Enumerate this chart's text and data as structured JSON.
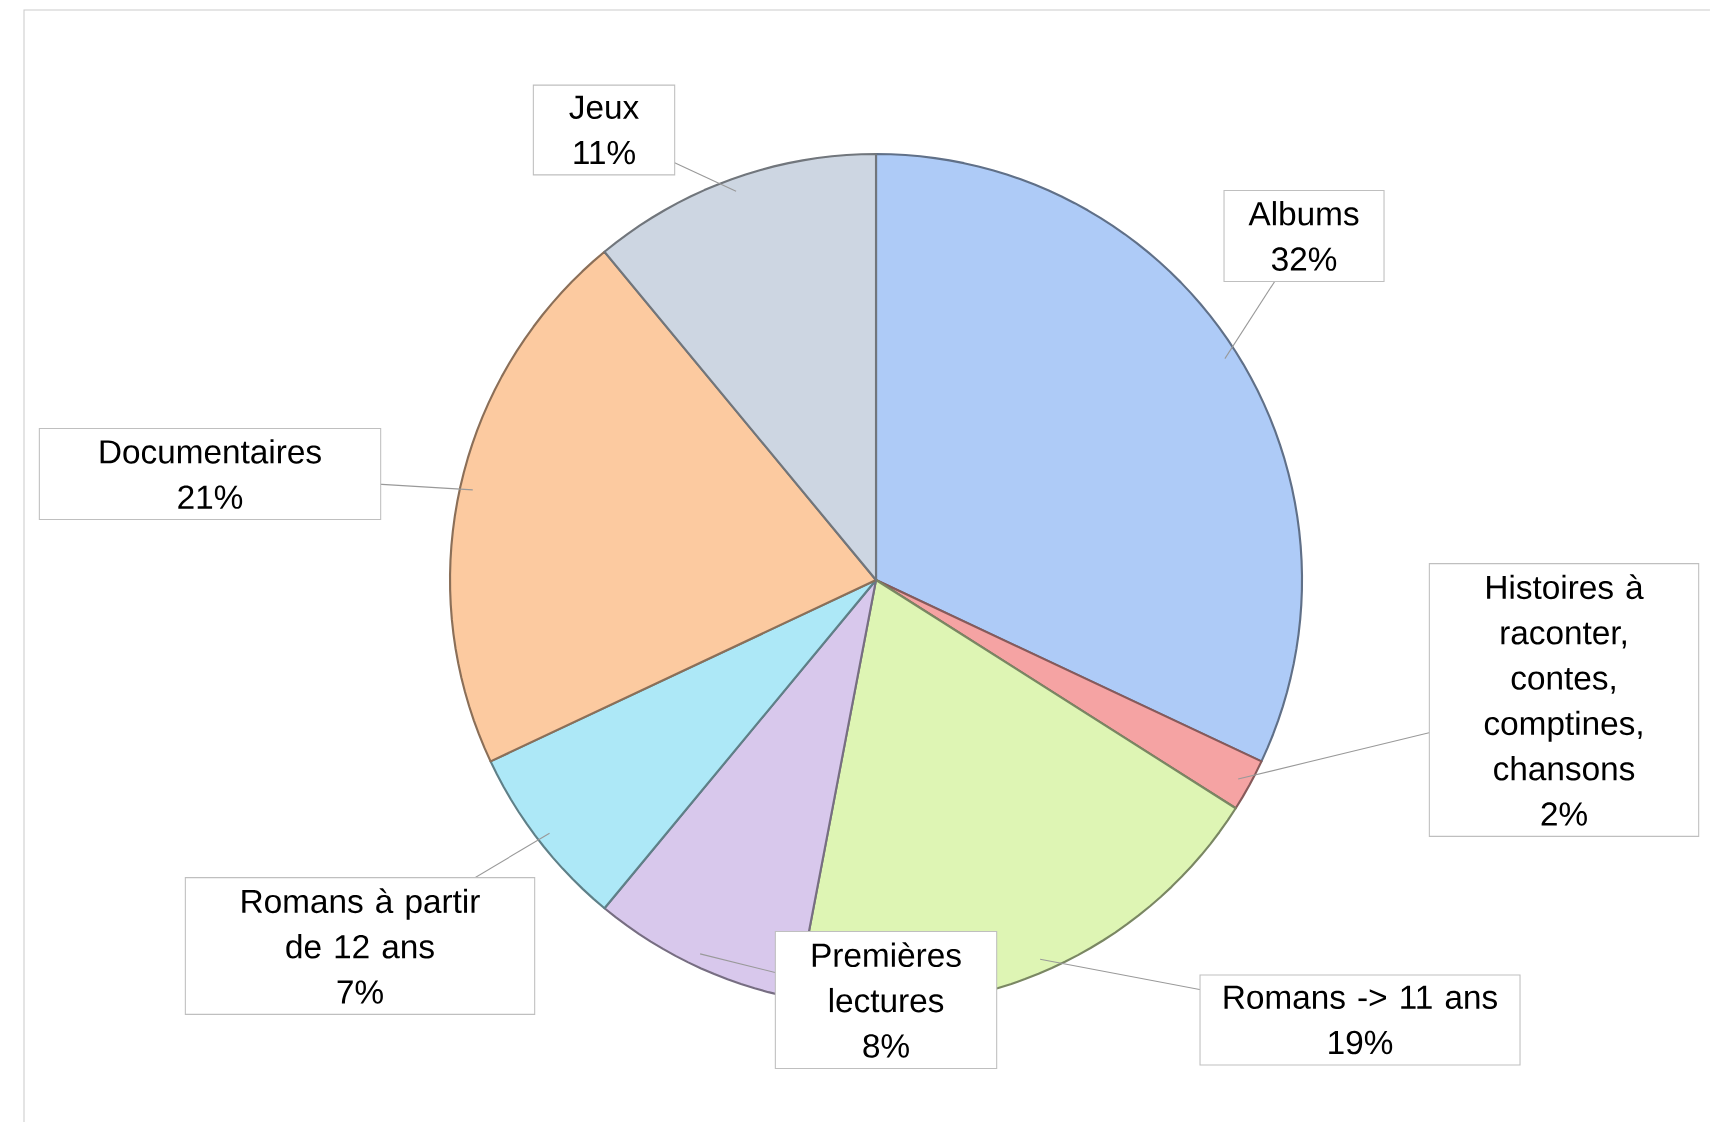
{
  "chart_data": {
    "type": "pie",
    "categories": [
      "Albums",
      "Histoires à raconter, contes, comptines, chansons",
      "Romans -> 11 ans",
      "Premières lectures",
      "Romans à partir de 12 ans",
      "Documentaires",
      "Jeux"
    ],
    "values": [
      32,
      2,
      19,
      8,
      7,
      21,
      11
    ],
    "colors": [
      "#aecbf7",
      "#f5a3a3",
      "#def5b4",
      "#d8c8ec",
      "#ade8f7",
      "#fccaa0",
      "#cdd6e2"
    ],
    "value_labels": [
      "32%",
      "2%",
      "19%",
      "8%",
      "7%",
      "21%",
      "11%"
    ]
  }
}
